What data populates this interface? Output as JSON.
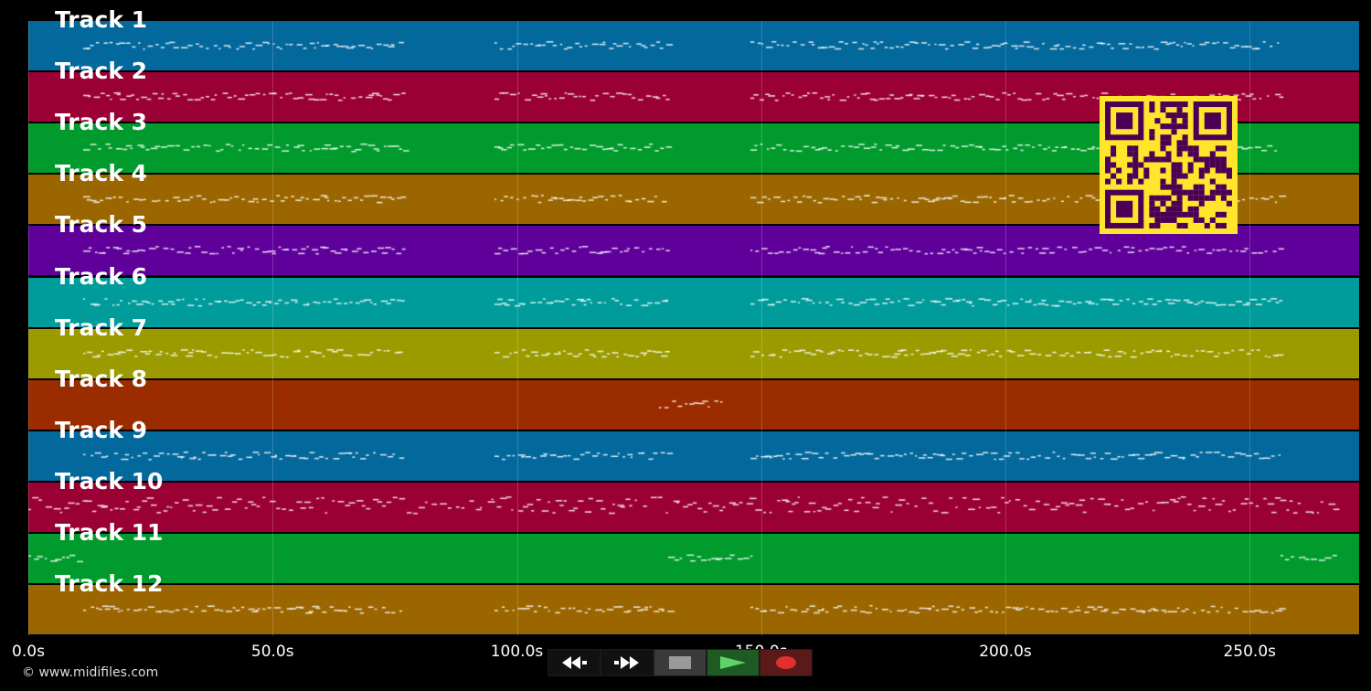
{
  "tracks": [
    {
      "label": "Track 1",
      "color": "#03689c"
    },
    {
      "label": "Track 2",
      "color": "#9b0034"
    },
    {
      "label": "Track 3",
      "color": "#009b2c"
    },
    {
      "label": "Track 4",
      "color": "#9b6600"
    },
    {
      "label": "Track 5",
      "color": "#5f009b"
    },
    {
      "label": "Track 6",
      "color": "#009b9b"
    },
    {
      "label": "Track 7",
      "color": "#9b9b00"
    },
    {
      "label": "Track 8",
      "color": "#9b2c00"
    },
    {
      "label": "Track 9",
      "color": "#03689c"
    },
    {
      "label": "Track 10",
      "color": "#9b0034"
    },
    {
      "label": "Track 11",
      "color": "#009b2c"
    },
    {
      "label": "Track 12",
      "color": "#9b6600"
    }
  ],
  "timeline": {
    "ticks": [
      "0.0s",
      "50.0s",
      "100.0s",
      "150.0s",
      "200.0s",
      "250.0s"
    ]
  },
  "footer": {
    "copyright": "© www.midifiles.com"
  },
  "transport": {
    "rewind_icon": "rewind-icon",
    "forward_icon": "fast-forward-icon",
    "stop_icon": "stop-icon",
    "play_icon": "play-icon",
    "record_icon": "record-icon"
  },
  "qr_colors": {
    "fg": "#4b0055",
    "bg": "#ffe52c"
  }
}
